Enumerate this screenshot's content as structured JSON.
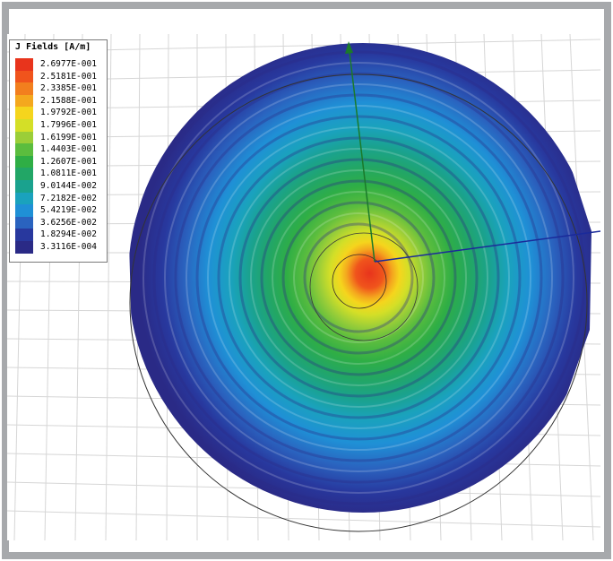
{
  "legend": {
    "title": "J Fields [A/m]",
    "entries": [
      {
        "value": "2.6977E-001",
        "color": "#e8341c"
      },
      {
        "value": "2.5181E-001",
        "color": "#f0541c"
      },
      {
        "value": "2.3385E-001",
        "color": "#f27f1e"
      },
      {
        "value": "2.1588E-001",
        "color": "#f4a81e"
      },
      {
        "value": "1.9792E-001",
        "color": "#f5d51d"
      },
      {
        "value": "1.7996E-001",
        "color": "#d4df27"
      },
      {
        "value": "1.6199E-001",
        "color": "#9bce38"
      },
      {
        "value": "1.4403E-001",
        "color": "#5bbd3e"
      },
      {
        "value": "1.2607E-001",
        "color": "#2fae45"
      },
      {
        "value": "1.0811E-001",
        "color": "#22a666"
      },
      {
        "value": "9.0144E-002",
        "color": "#1aa28e"
      },
      {
        "value": "7.2182E-002",
        "color": "#1aa2bd"
      },
      {
        "value": "5.4219E-002",
        "color": "#1f90d6"
      },
      {
        "value": "3.6256E-002",
        "color": "#2a63bf"
      },
      {
        "value": "1.8294E-002",
        "color": "#28389e"
      },
      {
        "value": "3.3116E-004",
        "color": "#2a2a86"
      }
    ]
  },
  "colors": {
    "frame_border": "#a7a9ac",
    "grid_line": "#d6d6d6",
    "axis_green": "#1a7a2a",
    "axis_blue": "#1a2a9a"
  }
}
